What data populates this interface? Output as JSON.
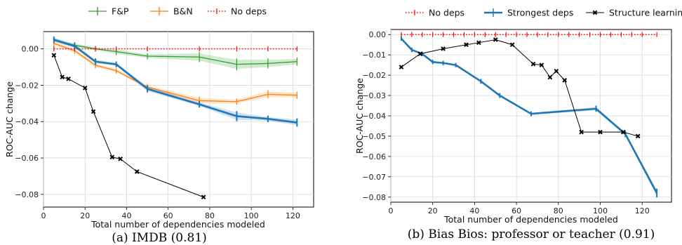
{
  "colors": {
    "fp": "#2ca02c",
    "bn": "#ff7f0e",
    "nodeps": "#ff0000",
    "strongest": "#1f77b4",
    "structure": "#000000"
  },
  "chart_data": [
    {
      "type": "line",
      "caption": "(a) IMDB (0.81)",
      "xlabel": "Total number of dependencies modeled",
      "ylabel": "ROC-AUC change",
      "xlim": [
        0,
        130
      ],
      "ylim": [
        -0.087,
        0.0095
      ],
      "xticks": [
        0,
        20,
        40,
        60,
        80,
        100,
        120
      ],
      "yticks": [
        0.0,
        -0.02,
        -0.04,
        -0.06,
        -0.08
      ],
      "xtick_labels": [
        "0",
        "20",
        "40",
        "60",
        "80",
        "100",
        "120"
      ],
      "ytick_labels": [
        "0.00",
        "−0.02",
        "−0.04",
        "−0.06",
        "−0.08"
      ],
      "grid": true,
      "legend_position": "top-outside",
      "legend": [
        "F&P",
        "B&N",
        "No deps"
      ],
      "series": [
        {
          "name": "F&P",
          "color_key": "fp",
          "style": "line-errorbar",
          "x": [
            5,
            15,
            25,
            35,
            50,
            75,
            93,
            108,
            122
          ],
          "y": [
            0.005,
            0.002,
            0.0,
            -0.0015,
            -0.004,
            -0.0045,
            -0.0085,
            -0.008,
            -0.007
          ],
          "err": [
            0.001,
            0.001,
            0.0008,
            0.0012,
            0.001,
            0.002,
            0.0025,
            0.002,
            0.0015
          ]
        },
        {
          "name": "B&N",
          "color_key": "bn",
          "style": "line-errorbar",
          "x": [
            5,
            15,
            25,
            35,
            50,
            75,
            93,
            108,
            122
          ],
          "y": [
            0.003,
            -0.001,
            -0.009,
            -0.012,
            -0.021,
            -0.0285,
            -0.029,
            -0.025,
            -0.0255
          ],
          "err": [
            0.001,
            0.001,
            0.001,
            0.0008,
            0.001,
            0.0015,
            0.001,
            0.0015,
            0.0012
          ]
        },
        {
          "name": "No deps",
          "color_key": "nodeps",
          "style": "dotted-marker",
          "x": [
            5,
            15,
            25,
            35,
            50,
            75,
            93,
            108,
            122
          ],
          "y": [
            0,
            0,
            0,
            0,
            0,
            0,
            0,
            0,
            0
          ]
        },
        {
          "name": "",
          "color_key": "strongest",
          "style": "thick-line-errorbar",
          "x": [
            5,
            15,
            25,
            35,
            50,
            75,
            93,
            108,
            122
          ],
          "y": [
            0.005,
            0.0015,
            -0.007,
            -0.0085,
            -0.022,
            -0.0305,
            -0.037,
            -0.0385,
            -0.0405
          ],
          "err": [
            0.001,
            0.001,
            0.001,
            0.0008,
            0.0012,
            0.001,
            0.002,
            0.001,
            0.0015
          ]
        },
        {
          "name": "",
          "color_key": "structure",
          "style": "x-marker-line",
          "x": [
            5,
            9,
            12,
            20,
            24,
            33,
            37,
            45,
            77
          ],
          "y": [
            -0.0035,
            -0.0155,
            -0.0165,
            -0.0215,
            -0.0345,
            -0.0595,
            -0.0605,
            -0.0675,
            -0.0815
          ]
        }
      ]
    },
    {
      "type": "line",
      "caption": "(b) Bias Bios: professor or teacher (0.91)",
      "xlabel": "Total number of dependencies modeled",
      "ylabel": "ROC-AUC change",
      "xlim": [
        0,
        134
      ],
      "ylim": [
        -0.0825,
        0.0025
      ],
      "xticks": [
        0,
        20,
        40,
        60,
        80,
        100,
        120
      ],
      "yticks": [
        0.0,
        -0.01,
        -0.02,
        -0.03,
        -0.04,
        -0.05,
        -0.06,
        -0.07,
        -0.08
      ],
      "xtick_labels": [
        "0",
        "20",
        "40",
        "60",
        "80",
        "100",
        "120"
      ],
      "ytick_labels": [
        "0.00",
        "−0.01",
        "−0.02",
        "−0.03",
        "−0.04",
        "−0.05",
        "−0.06",
        "−0.07",
        "−0.08"
      ],
      "grid": true,
      "legend_position": "top-outside",
      "legend": [
        "No deps",
        "Strongest deps",
        "Structure learning"
      ],
      "series": [
        {
          "name": "No deps",
          "color_key": "nodeps",
          "style": "dotted-marker",
          "x": [
            5,
            10,
            15,
            20,
            25,
            30,
            35,
            40,
            45,
            50,
            55,
            60,
            65,
            70,
            75,
            80,
            85,
            90,
            95,
            100,
            105,
            110,
            115,
            120,
            127
          ],
          "y": [
            0,
            0,
            0,
            0,
            0,
            0,
            0,
            0,
            0,
            0,
            0,
            0,
            0,
            0,
            0,
            0,
            0,
            0,
            0,
            0,
            0,
            0,
            0,
            0,
            0
          ]
        },
        {
          "name": "Strongest deps",
          "color_key": "strongest",
          "style": "thick-line-errorbar",
          "x": [
            5,
            10,
            15,
            20,
            25,
            31,
            43,
            52,
            67,
            98,
            112,
            127
          ],
          "y": [
            -0.002,
            -0.0075,
            -0.0095,
            -0.0135,
            -0.014,
            -0.015,
            -0.023,
            -0.03,
            -0.039,
            -0.0365,
            -0.049,
            -0.078
          ],
          "err": [
            0.0004,
            0.0004,
            0.0004,
            0.0004,
            0.0004,
            0.0004,
            0.0005,
            0.0005,
            0.0005,
            0.0008,
            0.0008,
            0.0015
          ]
        },
        {
          "name": "Structure learning",
          "color_key": "structure",
          "style": "x-marker-line",
          "x": [
            5,
            14,
            25,
            36,
            42,
            50,
            58,
            68,
            72,
            76,
            79,
            83,
            91,
            100,
            111,
            118
          ],
          "y": [
            -0.016,
            -0.0095,
            -0.007,
            -0.005,
            -0.004,
            -0.0025,
            -0.005,
            -0.0145,
            -0.015,
            -0.021,
            -0.018,
            -0.0225,
            -0.048,
            -0.048,
            -0.048,
            -0.05
          ]
        }
      ]
    }
  ]
}
